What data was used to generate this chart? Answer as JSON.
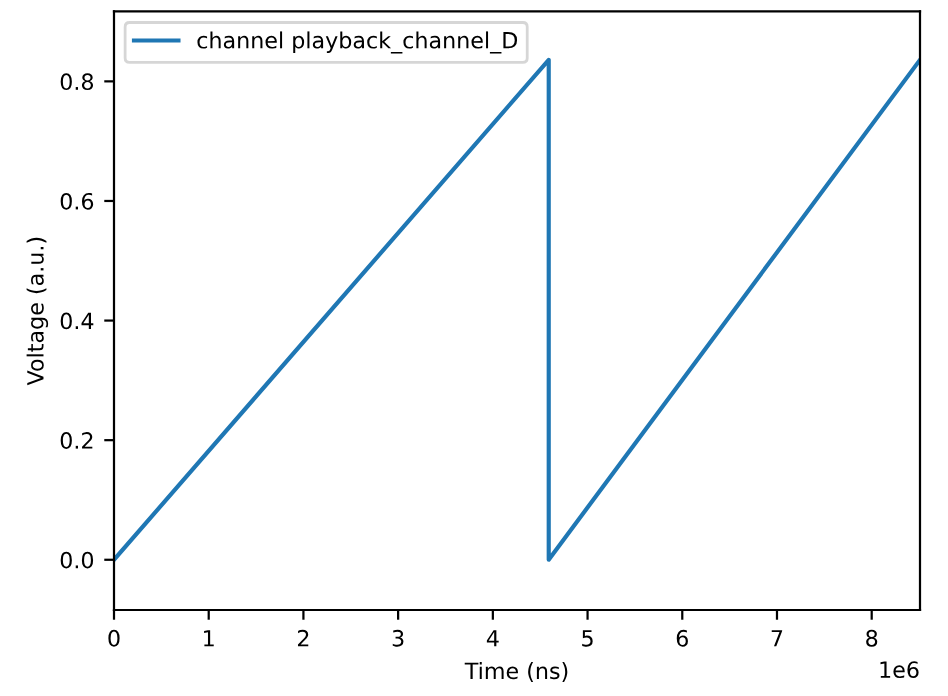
{
  "chart_data": {
    "type": "line",
    "xlabel": "Time (ns)",
    "ylabel": "Voltage (a.u.)",
    "annotations": [
      "1e6"
    ],
    "xlim": [
      0,
      8.51
    ],
    "ylim": [
      -0.084,
      0.917
    ],
    "xticks": [
      0,
      1,
      2,
      3,
      4,
      5,
      6,
      7,
      8
    ],
    "yticks": [
      {
        "value": 0,
        "label": "0.0"
      },
      {
        "value": 0.2,
        "label": "0.2"
      },
      {
        "value": 0.4,
        "label": "0.4"
      },
      {
        "value": 0.6,
        "label": "0.6"
      },
      {
        "value": 0.8,
        "label": "0.8"
      }
    ],
    "legend": "top left",
    "series": [
      {
        "name": "channel playback_channel_D",
        "color": "#1f77b4",
        "x": [
          0,
          4.59,
          4.59,
          8.51
        ],
        "values": [
          0,
          0.836,
          0,
          0.836
        ]
      }
    ]
  }
}
